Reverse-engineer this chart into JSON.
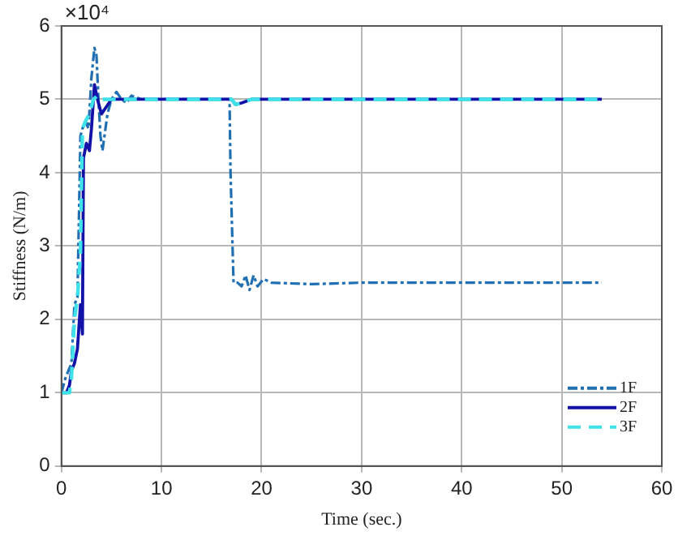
{
  "chart_data": {
    "type": "line",
    "xlabel": "Time (sec.)",
    "ylabel": "Stiffness (N/m)",
    "annotations": [
      "×10⁴"
    ],
    "xlim": [
      0,
      60
    ],
    "xticks": [
      0,
      10,
      20,
      30,
      40,
      50,
      60
    ],
    "ylim": [
      0,
      6
    ],
    "yticks": [
      0,
      1,
      2,
      3,
      4,
      5,
      6
    ],
    "grid": true,
    "legend": "bottom right",
    "marker": "none",
    "series": [
      {
        "name": "1F",
        "color": "#1f6fb2",
        "line_style": "dashdot",
        "x": [
          0,
          0.4,
          0.7,
          1.0,
          1.3,
          1.6,
          1.9,
          2.1,
          2.4,
          2.7,
          3.0,
          3.3,
          3.5,
          3.7,
          3.9,
          4.1,
          4.3,
          4.6,
          5.0,
          5.5,
          6.0,
          6.5,
          7.0,
          8,
          10,
          16.8,
          16.9,
          17.2,
          17.6,
          18.0,
          18.4,
          18.8,
          19.2,
          19.6,
          20.2,
          21,
          25,
          30,
          40,
          54
        ],
        "values": [
          1.0,
          1.2,
          1.3,
          1.4,
          2.2,
          2.3,
          4.5,
          4.6,
          4.7,
          4.6,
          5.3,
          5.7,
          5.6,
          5.0,
          4.5,
          4.3,
          4.5,
          4.8,
          5.0,
          5.1,
          5.0,
          4.95,
          5.05,
          5.0,
          5.0,
          5.0,
          4.0,
          2.5,
          2.5,
          2.45,
          2.6,
          2.4,
          2.6,
          2.45,
          2.55,
          2.5,
          2.48,
          2.5,
          2.5,
          2.5
        ]
      },
      {
        "name": "2F",
        "color": "#1212a8",
        "line_style": "solid",
        "x": [
          0,
          0.5,
          0.8,
          1.0,
          1.3,
          1.6,
          1.9,
          2.0,
          2.1,
          2.2,
          2.5,
          2.8,
          3.0,
          3.3,
          3.6,
          4.0,
          4.5,
          5.0,
          6.0,
          7,
          10,
          17,
          17.4,
          18,
          19,
          20,
          30,
          40,
          54
        ],
        "values": [
          1.0,
          1.0,
          1.1,
          1.3,
          1.4,
          1.6,
          2.2,
          2.0,
          1.8,
          4.2,
          4.4,
          4.3,
          4.6,
          5.2,
          5.0,
          4.8,
          4.9,
          5.0,
          5.0,
          5.0,
          5.0,
          5.0,
          4.93,
          4.95,
          5.0,
          5.0,
          5.0,
          5.0,
          5.0
        ]
      },
      {
        "name": "3F",
        "color": "#3ee2e8",
        "line_style": "dashed",
        "x": [
          0,
          0.4,
          0.8,
          1.0,
          1.3,
          1.6,
          1.9,
          2.1,
          2.4,
          2.8,
          3.2,
          3.6,
          4.0,
          5.0,
          6.0,
          10,
          17,
          17.4,
          18,
          19,
          20,
          30,
          40,
          54
        ],
        "values": [
          1.0,
          1.0,
          1.0,
          1.2,
          2.0,
          2.3,
          2.9,
          4.6,
          4.7,
          4.8,
          5.0,
          5.05,
          5.0,
          5.0,
          5.0,
          5.0,
          5.0,
          4.93,
          4.95,
          5.0,
          5.0,
          5.0,
          5.0,
          5.0
        ]
      }
    ]
  }
}
